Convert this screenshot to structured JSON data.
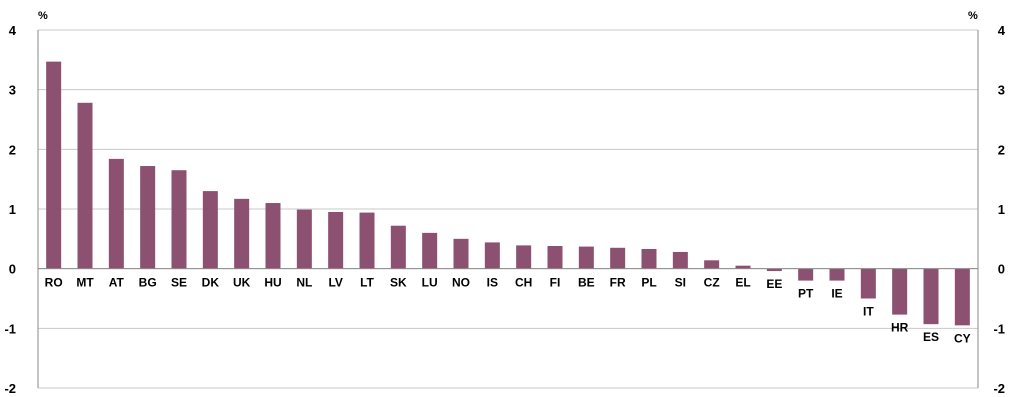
{
  "chart_data": {
    "type": "bar",
    "unit_left": "%",
    "unit_right": "%",
    "categories": [
      "RO",
      "MT",
      "AT",
      "BG",
      "SE",
      "DK",
      "UK",
      "HU",
      "NL",
      "LV",
      "LT",
      "SK",
      "LU",
      "NO",
      "IS",
      "CH",
      "FI",
      "BE",
      "FR",
      "PL",
      "SI",
      "CZ",
      "EL",
      "EE",
      "PT",
      "IE",
      "IT",
      "HR",
      "ES",
      "CY"
    ],
    "values": [
      3.47,
      2.78,
      1.84,
      1.72,
      1.65,
      1.3,
      1.17,
      1.1,
      0.99,
      0.95,
      0.94,
      0.72,
      0.6,
      0.5,
      0.44,
      0.39,
      0.38,
      0.37,
      0.35,
      0.33,
      0.28,
      0.14,
      0.05,
      -0.04,
      -0.2,
      -0.2,
      -0.5,
      -0.77,
      -0.93,
      -0.95
    ],
    "ylim": [
      -2,
      4
    ],
    "yticks": [
      "-2",
      "-1",
      "0",
      "1",
      "2",
      "3",
      "4"
    ],
    "grid": true,
    "bar_color": "#8c5070"
  }
}
